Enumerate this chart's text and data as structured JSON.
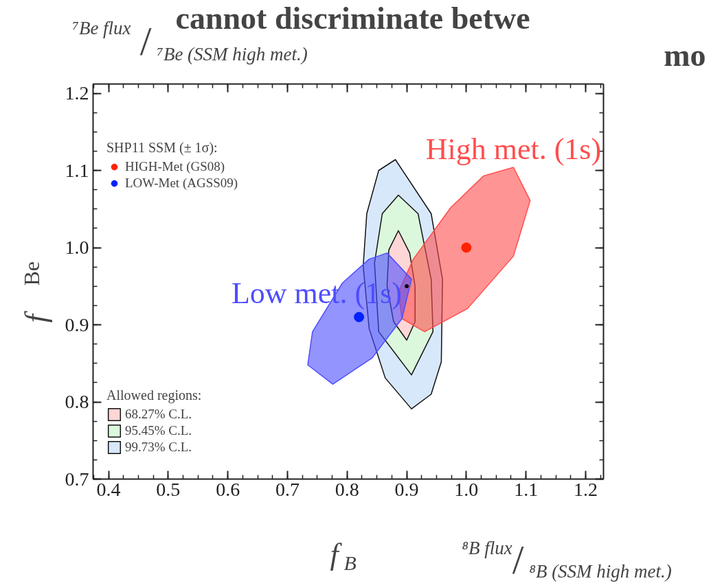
{
  "chart_data": {
    "type": "scatter",
    "title": "cannot discriminate betwe\nmo",
    "xlabel": "f$_{B}$",
    "ylabel": "f$_{Be}$",
    "legend_title": "SHP11 SSM (± 1σ):",
    "annotations": [
      "⁷Be flux/⁷Be (SSM high met.)",
      "⁸B flux/⁸B (SSM high met.)",
      "Allowed regions:"
    ],
    "xlim": [
      0.374,
      1.23
    ],
    "ylim": [
      0.7,
      1.212
    ],
    "xticks": [
      {
        "value": 0.4,
        "label": "0.4"
      },
      {
        "value": 0.5,
        "label": "0.5"
      },
      {
        "value": 0.6,
        "label": "0.6"
      },
      {
        "value": 0.7,
        "label": "0.7"
      },
      {
        "value": 0.8,
        "label": "0.8"
      },
      {
        "value": 0.9,
        "label": "0.9"
      },
      {
        "value": 1.0,
        "label": "1.0"
      },
      {
        "value": 1.1,
        "label": "1.1"
      },
      {
        "value": 1.2,
        "label": "1.2"
      }
    ],
    "yticks": [
      {
        "value": 0.7,
        "label": "0.7"
      },
      {
        "value": 0.8,
        "label": "0.8"
      },
      {
        "value": 0.9,
        "label": "0.9"
      },
      {
        "value": 1.0,
        "label": "1.0"
      },
      {
        "value": 1.1,
        "label": "1.1"
      },
      {
        "value": 1.2,
        "label": "1.2"
      }
    ],
    "legend": "left",
    "grid": false,
    "series": [
      {
        "type": "area",
        "name": "99.73% C.L.",
        "color": "#d8e8fb",
        "x": [
          0.881,
          0.941,
          0.96,
          0.958,
          0.941,
          0.908,
          0.864,
          0.837,
          0.827,
          0.833,
          0.853,
          0.881
        ],
        "values": [
          1.114,
          1.044,
          0.959,
          0.852,
          0.81,
          0.791,
          0.831,
          0.895,
          0.976,
          1.044,
          1.1,
          1.114
        ]
      },
      {
        "type": "area",
        "name": "95.45% C.L.",
        "color": "#dcf8dc",
        "x": [
          0.886,
          0.919,
          0.941,
          0.944,
          0.908,
          0.853,
          0.846,
          0.859,
          0.886
        ],
        "values": [
          1.068,
          1.044,
          0.959,
          0.891,
          0.835,
          0.891,
          0.98,
          1.044,
          1.068
        ]
      },
      {
        "type": "area",
        "name": "68.27% C.L.",
        "color": "#ffd6d6",
        "x": [
          0.886,
          0.905,
          0.914,
          0.914,
          0.9,
          0.878,
          0.867,
          0.87,
          0.886
        ],
        "values": [
          1.022,
          0.993,
          0.95,
          0.904,
          0.88,
          0.904,
          0.95,
          0.997,
          1.022
        ]
      },
      {
        "type": "area",
        "name": "High met. (1s)",
        "color": "#ff4d4d",
        "x": [
          1.079,
          1.107,
          1.079,
          1.002,
          0.93,
          0.892,
          0.886,
          0.911,
          0.974,
          1.029,
          1.079
        ],
        "values": [
          1.104,
          1.061,
          0.989,
          0.921,
          0.891,
          0.908,
          0.942,
          0.985,
          1.052,
          1.093,
          1.104
        ]
      },
      {
        "type": "area",
        "name": "Low met. (1s)",
        "color": "#4d4dff",
        "x": [
          0.867,
          0.908,
          0.892,
          0.842,
          0.776,
          0.734,
          0.742,
          0.792,
          0.837,
          0.867
        ],
        "values": [
          0.993,
          0.959,
          0.908,
          0.857,
          0.823,
          0.848,
          0.891,
          0.954,
          0.985,
          0.993
        ]
      },
      {
        "name": "HIGH-Met (GS08)",
        "color": "#ff2200",
        "x": [
          1.0
        ],
        "values": [
          1.0
        ]
      },
      {
        "name": "LOW-Met (AGSS09)",
        "color": "#0022ff",
        "x": [
          0.82
        ],
        "values": [
          0.91
        ]
      },
      {
        "color": "#000000",
        "x": [
          0.9
        ],
        "values": [
          0.95
        ]
      }
    ]
  }
}
